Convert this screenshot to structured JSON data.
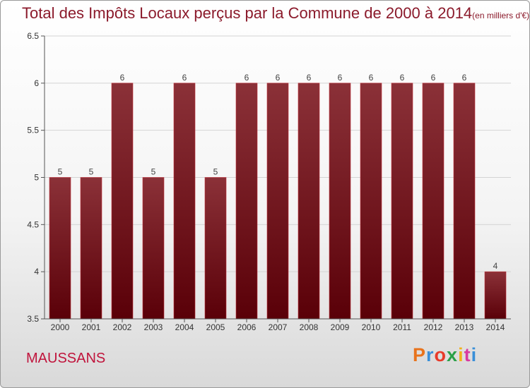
{
  "title": "Total des Impôts Locaux perçus par la Commune de 2000 à 2014",
  "subtitle": "(en milliers d'€)",
  "commune": "MAUSSANS",
  "logo": {
    "text": "Proxiti",
    "colors": [
      "#e8731c",
      "#3a8fd8",
      "#e83a2a",
      "#2aa048",
      "#f2b21c",
      "#d83aa0",
      "#3a8fd8"
    ]
  },
  "colors": {
    "bar_top": "#8b3138",
    "bar_bottom": "#5a0008",
    "title": "#8b1a2b",
    "commune": "#c0143c"
  },
  "chart_data": {
    "type": "bar",
    "categories": [
      "2000",
      "2001",
      "2002",
      "2003",
      "2004",
      "2005",
      "2006",
      "2007",
      "2008",
      "2009",
      "2010",
      "2011",
      "2012",
      "2013",
      "2014"
    ],
    "values": [
      5,
      5,
      6,
      5,
      6,
      5,
      6,
      6,
      6,
      6,
      6,
      6,
      6,
      6,
      4
    ],
    "data_labels": [
      "5",
      "5",
      "6",
      "5",
      "6",
      "5",
      "6",
      "6",
      "6",
      "6",
      "6",
      "6",
      "6",
      "6",
      "4"
    ],
    "ylim": [
      3.5,
      6.5
    ],
    "yticks": [
      "3.5",
      "4",
      "4.5",
      "5",
      "5.5",
      "6",
      "6.5"
    ],
    "grid": true
  }
}
